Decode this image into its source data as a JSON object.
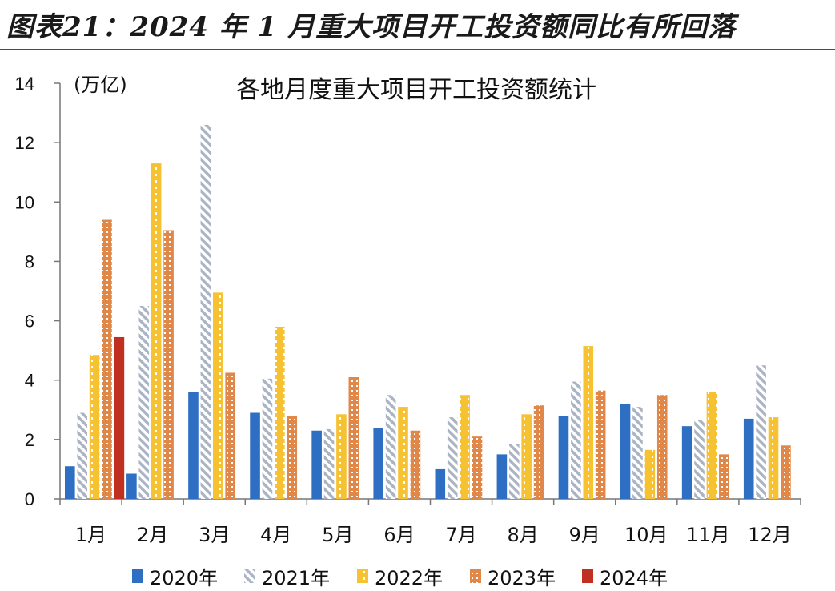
{
  "header": {
    "title": "图表21：2024 年 1 月重大项目开工投资额同比有所回落"
  },
  "chart_data": {
    "type": "bar",
    "title": "各地月度重大项目开工投资额统计",
    "unit_label": "(万亿)",
    "xlabel": "",
    "ylabel": "",
    "ylim": [
      0,
      14
    ],
    "yticks": [
      0,
      2,
      4,
      6,
      8,
      10,
      12,
      14
    ],
    "categories": [
      "1月",
      "2月",
      "3月",
      "4月",
      "5月",
      "6月",
      "7月",
      "8月",
      "9月",
      "10月",
      "11月",
      "12月"
    ],
    "legend_position": "bottom",
    "grid": false,
    "series": [
      {
        "name": "2020年",
        "color": "#2e6fc4",
        "pattern": "solid",
        "values": [
          1.1,
          0.85,
          3.6,
          2.9,
          2.3,
          2.4,
          1.0,
          1.5,
          2.8,
          3.2,
          2.45,
          2.7
        ]
      },
      {
        "name": "2021年",
        "color": "#aab4c4",
        "pattern": "diagonal",
        "values": [
          2.9,
          6.5,
          12.6,
          4.05,
          2.35,
          3.5,
          2.75,
          1.85,
          3.95,
          3.1,
          2.65,
          4.5
        ]
      },
      {
        "name": "2022年",
        "color": "#f6c232",
        "pattern": "dotted",
        "values": [
          4.85,
          11.3,
          6.95,
          5.8,
          2.85,
          3.1,
          3.5,
          2.85,
          5.15,
          1.65,
          3.6,
          2.75
        ]
      },
      {
        "name": "2023年",
        "color": "#e0874a",
        "pattern": "grid",
        "values": [
          9.4,
          9.05,
          4.25,
          2.8,
          4.1,
          2.3,
          2.1,
          3.15,
          3.65,
          3.5,
          1.5,
          1.8
        ]
      },
      {
        "name": "2024年",
        "color": "#c03020",
        "pattern": "solid",
        "values": [
          5.45,
          null,
          null,
          null,
          null,
          null,
          null,
          null,
          null,
          null,
          null,
          null
        ]
      }
    ]
  }
}
